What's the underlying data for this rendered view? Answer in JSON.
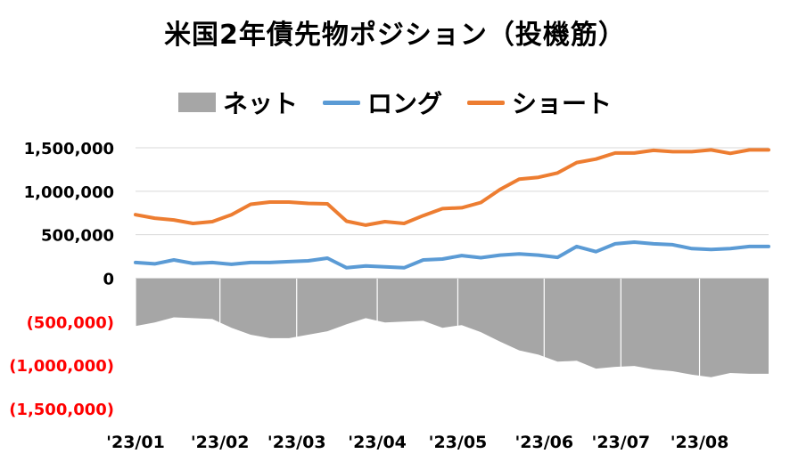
{
  "colors": {
    "net_area": "#a6a6a6",
    "long_line": "#5b9bd5",
    "short_line": "#ed7d31",
    "negative_label": "#ff0000",
    "grid": "#d9d9d9",
    "text": "#000000"
  },
  "chart_data": {
    "type": "line",
    "title": "米国2年債先物ポジション（投機筋）",
    "legend_position": "top",
    "grid": true,
    "ylim": [
      -1500000,
      1500000
    ],
    "y_ticks": [
      1500000,
      1000000,
      500000,
      0,
      -500000,
      -1000000,
      -1500000
    ],
    "y_tick_labels": [
      "1,500,000",
      "1,000,000",
      "500,000",
      "0",
      "(500,000)",
      "(1,000,000)",
      "(1,500,000)"
    ],
    "x_tick_labels": [
      {
        "label": "'23/01",
        "index": 0
      },
      {
        "label": "'23/02",
        "index": 4.4
      },
      {
        "label": "'23/03",
        "index": 8.4
      },
      {
        "label": "'23/04",
        "index": 12.6
      },
      {
        "label": "'23/05",
        "index": 16.8
      },
      {
        "label": "'23/06",
        "index": 21.3
      },
      {
        "label": "'23/07",
        "index": 25.3
      },
      {
        "label": "'23/08",
        "index": 29.4
      }
    ],
    "series": [
      {
        "name": "ネット",
        "kind": "area",
        "values": [
          -550000,
          -510000,
          -450000,
          -460000,
          -470000,
          -570000,
          -650000,
          -690000,
          -690000,
          -650000,
          -610000,
          -530000,
          -460000,
          -510000,
          -500000,
          -490000,
          -570000,
          -540000,
          -620000,
          -730000,
          -830000,
          -880000,
          -960000,
          -950000,
          -1040000,
          -1020000,
          -1010000,
          -1050000,
          -1070000,
          -1110000,
          -1140000,
          -1090000,
          -1100000,
          -1100000
        ]
      },
      {
        "name": "ロング",
        "kind": "line",
        "values": [
          180000,
          165000,
          210000,
          170000,
          180000,
          160000,
          180000,
          180000,
          190000,
          200000,
          230000,
          120000,
          140000,
          130000,
          120000,
          210000,
          220000,
          260000,
          235000,
          265000,
          280000,
          265000,
          240000,
          365000,
          305000,
          395000,
          415000,
          395000,
          385000,
          340000,
          330000,
          340000,
          365000,
          365000
        ]
      },
      {
        "name": "ショート",
        "kind": "line",
        "values": [
          730000,
          690000,
          670000,
          630000,
          650000,
          730000,
          850000,
          875000,
          875000,
          860000,
          855000,
          655000,
          610000,
          650000,
          630000,
          720000,
          800000,
          810000,
          870000,
          1020000,
          1140000,
          1160000,
          1210000,
          1330000,
          1370000,
          1440000,
          1440000,
          1470000,
          1455000,
          1455000,
          1475000,
          1435000,
          1475000,
          1475000
        ]
      }
    ]
  }
}
